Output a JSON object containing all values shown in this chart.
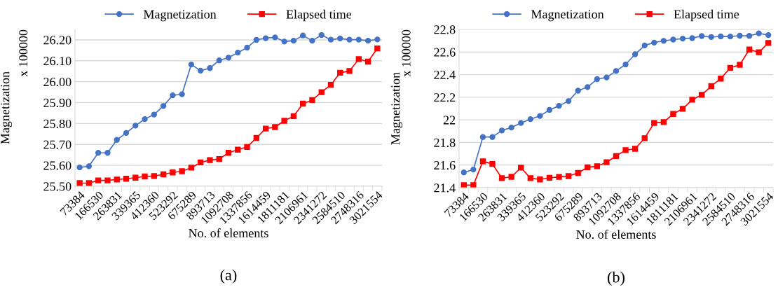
{
  "chart_data": [
    {
      "type": "line",
      "xlabel": "No. of elements",
      "ylabel": "Magnetization",
      "categories": [
        "73384",
        null,
        "166530",
        null,
        "263831",
        null,
        "339365",
        null,
        "412360",
        null,
        "523292",
        null,
        "675289",
        null,
        "893713",
        null,
        "1092708",
        null,
        "1337856",
        null,
        "1614459",
        null,
        "1811181",
        null,
        "2106961",
        null,
        "2341272",
        null,
        "2584510",
        null,
        "2748316",
        null,
        "3021554"
      ],
      "series": [
        {
          "name": "Magnetization",
          "color": "#4472c4",
          "marker": "circle",
          "values": [
            25.59,
            25.596,
            25.66,
            25.66,
            25.722,
            25.755,
            25.79,
            25.821,
            25.843,
            25.884,
            25.935,
            25.94,
            26.082,
            26.053,
            26.065,
            26.102,
            26.115,
            26.139,
            26.163,
            26.2,
            26.208,
            26.212,
            26.192,
            26.196,
            26.221,
            26.196,
            26.223,
            26.201,
            26.207,
            26.201,
            26.201,
            26.196,
            26.202
          ]
        },
        {
          "name": "Elapsed time",
          "color": "#ff0000",
          "marker": "square",
          "values": [
            25.515,
            25.515,
            25.528,
            25.528,
            25.532,
            25.536,
            25.541,
            25.547,
            25.549,
            25.557,
            25.566,
            25.572,
            25.589,
            25.614,
            25.625,
            25.63,
            25.66,
            25.675,
            25.688,
            25.731,
            25.776,
            25.783,
            25.813,
            25.835,
            25.895,
            25.912,
            25.95,
            25.985,
            26.043,
            26.051,
            26.108,
            26.096,
            26.159
          ]
        }
      ],
      "ylim": [
        25.5,
        26.25
      ],
      "yticks": [
        {
          "value": 25.5,
          "label": "25.50"
        },
        {
          "value": 25.6,
          "label": "25.60"
        },
        {
          "value": 25.7,
          "label": "25.70"
        },
        {
          "value": 25.8,
          "label": "25.80"
        },
        {
          "value": 25.9,
          "label": "25.90"
        },
        {
          "value": 26.0,
          "label": "26.00"
        },
        {
          "value": 26.1,
          "label": "26.10"
        },
        {
          "value": 26.2,
          "label": "26.20"
        }
      ],
      "grid": "y",
      "legend": "top",
      "line_style": "solid",
      "annotations": [
        "x 100000",
        "(a)"
      ]
    },
    {
      "type": "line",
      "xlabel": "No. of elements",
      "ylabel": "Magnetization",
      "categories": [
        "73384",
        null,
        "166530",
        null,
        "263831",
        null,
        "339365",
        null,
        "412360",
        null,
        "523292",
        null,
        "675289",
        null,
        "893713",
        null,
        "1092708",
        null,
        "1337856",
        null,
        "1614459",
        null,
        "1811181",
        null,
        "2106961",
        null,
        "2341272",
        null,
        "2584510",
        null,
        "2748316",
        null,
        "3021554"
      ],
      "series": [
        {
          "name": "Magnetization",
          "color": "#4472c4",
          "marker": "circle",
          "values": [
            21.535,
            21.56,
            21.848,
            21.848,
            21.906,
            21.932,
            21.972,
            22.006,
            22.034,
            22.088,
            22.124,
            22.166,
            22.258,
            22.29,
            22.36,
            22.375,
            22.432,
            22.49,
            22.58,
            22.658,
            22.683,
            22.699,
            22.71,
            22.719,
            22.723,
            22.741,
            22.733,
            22.738,
            22.737,
            22.744,
            22.743,
            22.765,
            22.75
          ]
        },
        {
          "name": "Elapsed time",
          "color": "#ff0000",
          "marker": "square",
          "values": [
            21.422,
            21.422,
            21.633,
            21.61,
            21.484,
            21.496,
            21.577,
            21.484,
            21.473,
            21.487,
            21.495,
            21.502,
            21.53,
            21.58,
            21.59,
            21.625,
            21.68,
            21.732,
            21.744,
            21.838,
            21.972,
            21.98,
            22.052,
            22.098,
            22.178,
            22.222,
            22.298,
            22.365,
            22.46,
            22.487,
            22.622,
            22.598,
            22.68
          ]
        }
      ],
      "ylim": [
        21.4,
        22.8
      ],
      "yticks": [
        21.4,
        21.6,
        21.8,
        22,
        22.2,
        22.4,
        22.6,
        22.8
      ],
      "grid": "y",
      "legend": "top",
      "line_style": "solid",
      "annotations": [
        "x 100000",
        "(b)"
      ]
    }
  ]
}
